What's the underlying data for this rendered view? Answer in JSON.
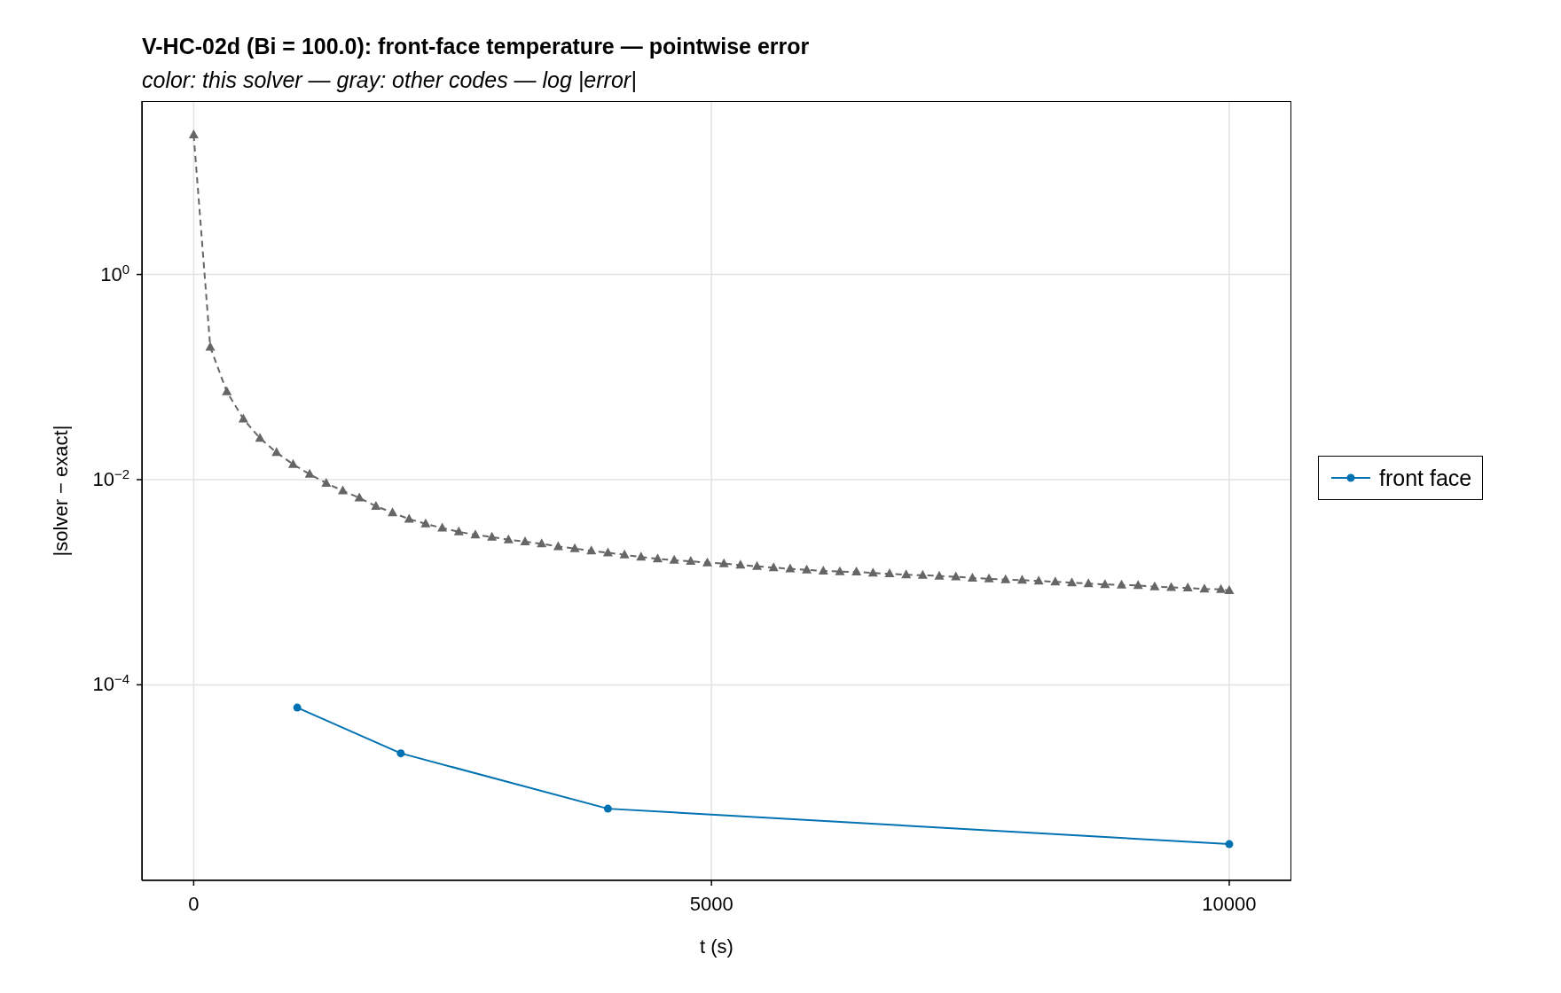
{
  "chart_data": {
    "type": "line",
    "title": "V-HC-02d (Bi = 100.0): front-face temperature — pointwise error",
    "subtitle": "color: this solver — gray: other codes — log |error|",
    "xlabel": "t (s)",
    "ylabel": "|solver − exact|",
    "log": "y",
    "grid": true,
    "legend": "right",
    "xlim": [
      -500,
      10600
    ],
    "xticks": [
      0,
      5000,
      10000
    ],
    "ylim": [
      1.24e-06,
      49
    ],
    "yticks": [
      {
        "value": 1,
        "label": "10$^{0}$"
      },
      {
        "value": 0.01,
        "label": "10$^{−2}$"
      },
      {
        "value": 0.0001,
        "label": "10$^{−4}$"
      }
    ],
    "series": [
      {
        "color": "#666666",
        "marker": "triangle",
        "line_style": "dashed",
        "x": [
          0,
          160,
          320,
          480,
          640,
          800,
          960,
          1120,
          1280,
          1440,
          1600,
          1760,
          1920,
          2080,
          2240,
          2400,
          2560,
          2720,
          2880,
          3040,
          3200,
          3360,
          3520,
          3680,
          3840,
          4000,
          4160,
          4320,
          4480,
          4640,
          4800,
          4960,
          5120,
          5280,
          5440,
          5600,
          5760,
          5920,
          6080,
          6240,
          6400,
          6560,
          6720,
          6880,
          7040,
          7200,
          7360,
          7520,
          7680,
          7840,
          8000,
          8160,
          8320,
          8480,
          8640,
          8800,
          8960,
          9120,
          9280,
          9440,
          9600,
          9760,
          9920,
          10000
        ],
        "values": [
          23,
          0.196,
          0.072,
          0.039,
          0.0253,
          0.0184,
          0.0141,
          0.0113,
          0.00925,
          0.00778,
          0.00664,
          0.00551,
          0.00477,
          0.00413,
          0.00371,
          0.00338,
          0.0031,
          0.0029,
          0.00275,
          0.0026,
          0.00248,
          0.00237,
          0.00223,
          0.00213,
          0.00202,
          0.00194,
          0.00185,
          0.00176,
          0.00169,
          0.00164,
          0.0016,
          0.00155,
          0.00152,
          0.00147,
          0.00143,
          0.00139,
          0.00135,
          0.00132,
          0.00129,
          0.00127,
          0.00126,
          0.00123,
          0.00121,
          0.00118,
          0.00117,
          0.00115,
          0.00113,
          0.0011,
          0.00108,
          0.00106,
          0.00105,
          0.00103,
          0.00101,
          0.00099,
          0.00097,
          0.00095,
          0.00094,
          0.00093,
          0.000905,
          0.00089,
          0.00088,
          0.00086,
          0.00085,
          0.00083
        ]
      },
      {
        "name": "front face",
        "color": "#0072b2",
        "marker": "circle",
        "line_style": "solid",
        "x": [
          1000,
          2000,
          4000,
          10000
        ],
        "values": [
          6e-05,
          2.15e-05,
          6.2e-06,
          2.8e-06
        ]
      }
    ]
  }
}
